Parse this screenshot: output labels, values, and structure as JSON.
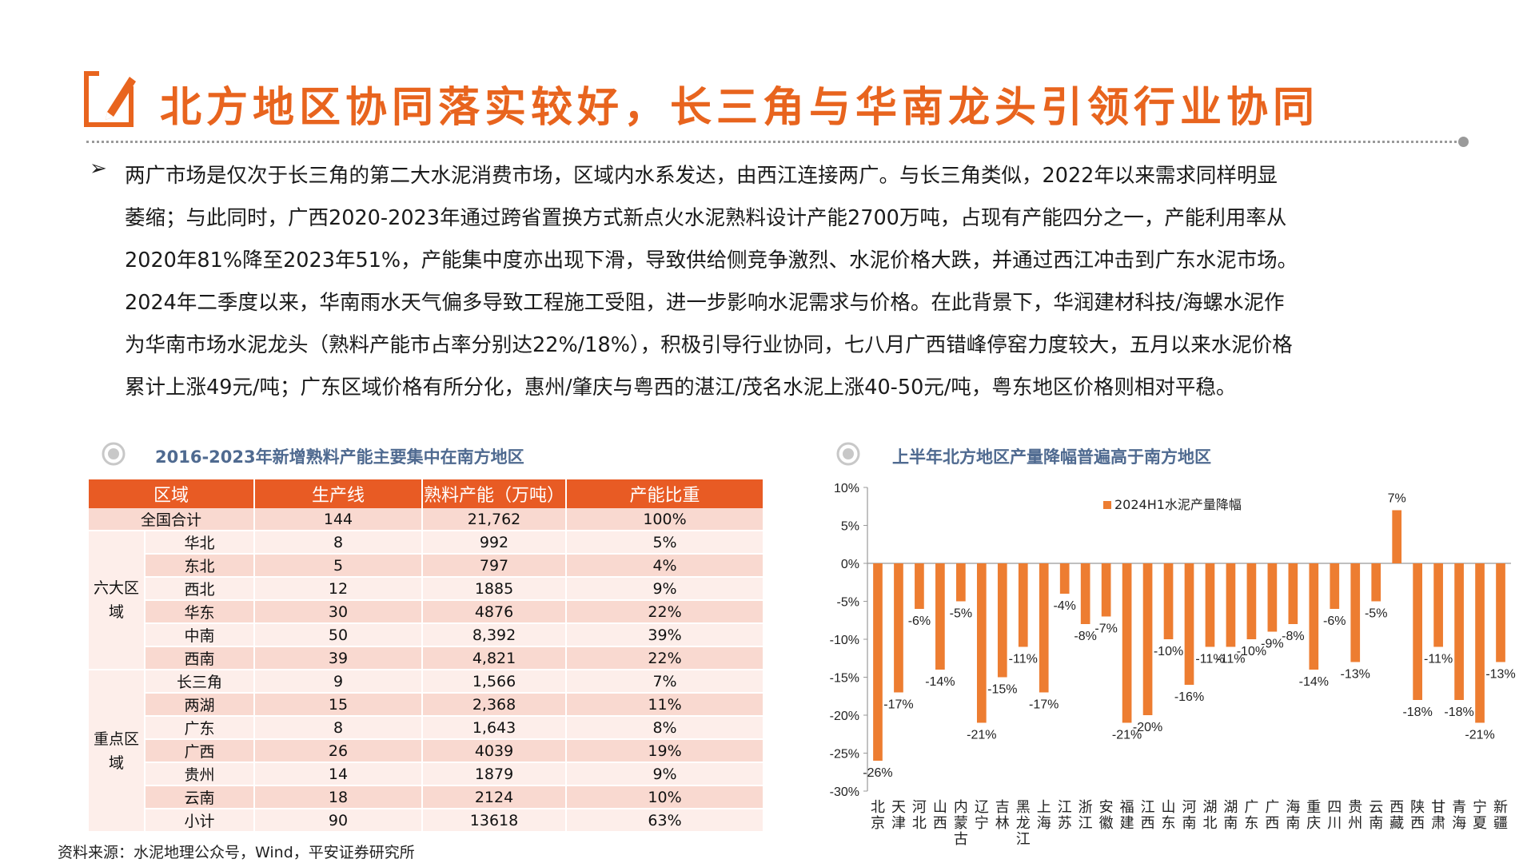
{
  "header": {
    "title": "北方地区协同落实较好，长三角与华南龙头引领行业协同"
  },
  "body_text": {
    "bullet": "➢",
    "lines": [
      "两广市场是仅次于长三角的第二大水泥消费市场，区域内水系发达，由西江连接两广。与长三角类似，2022年以来需求同样明显",
      "萎缩；与此同时，广西2020-2023年通过跨省置换方式新点火水泥熟料设计产能2700万吨，占现有产能四分之一，产能利用率从",
      "2020年81%降至2023年51%，产能集中度亦出现下滑，导致供给侧竞争激烈、水泥价格大跌，并通过西江冲击到广东水泥市场。",
      "2024年二季度以来，华南雨水天气偏多导致工程施工受阻，进一步影响水泥需求与价格。在此背景下，华润建材科技/海螺水泥作",
      "为华南市场水泥龙头（熟料产能市占率分别达22%/18%），积极引导行业协同，七八月广西错峰停窑力度较大，五月以来水泥价格",
      "累计上涨49元/吨；广东区域价格有所分化，惠州/肇庆与粤西的湛江/茂名水泥上涨40-50元/吨，粤东地区价格则相对平稳。"
    ]
  },
  "table_section": {
    "heading": "2016-2023年新增熟料产能主要集中在南方地区",
    "columns": [
      "区域",
      "生产线",
      "熟料产能（万吨）",
      "产能比重"
    ],
    "total": {
      "region": "全国合计",
      "lines": "144",
      "capacity": "21,762",
      "share": "100%"
    },
    "groups": [
      {
        "label": "六大区域",
        "rows": [
          {
            "region": "华北",
            "lines": "8",
            "capacity": "992",
            "share": "5%"
          },
          {
            "region": "东北",
            "lines": "5",
            "capacity": "797",
            "share": "4%"
          },
          {
            "region": "西北",
            "lines": "12",
            "capacity": "1885",
            "share": "9%"
          },
          {
            "region": "华东",
            "lines": "30",
            "capacity": "4876",
            "share": "22%"
          },
          {
            "region": "中南",
            "lines": "50",
            "capacity": "8,392",
            "share": "39%"
          },
          {
            "region": "西南",
            "lines": "39",
            "capacity": "4,821",
            "share": "22%"
          }
        ]
      },
      {
        "label": "重点区域",
        "rows": [
          {
            "region": "长三角",
            "lines": "9",
            "capacity": "1,566",
            "share": "7%"
          },
          {
            "region": "两湖",
            "lines": "15",
            "capacity": "2,368",
            "share": "11%"
          },
          {
            "region": "广东",
            "lines": "8",
            "capacity": "1,643",
            "share": "8%"
          },
          {
            "region": "广西",
            "lines": "26",
            "capacity": "4039",
            "share": "19%"
          },
          {
            "region": "贵州",
            "lines": "14",
            "capacity": "1879",
            "share": "9%"
          },
          {
            "region": "云南",
            "lines": "18",
            "capacity": "2124",
            "share": "10%"
          },
          {
            "region": "小计",
            "lines": "90",
            "capacity": "13618",
            "share": "63%"
          }
        ]
      }
    ]
  },
  "chart_section": {
    "heading": "上半年北方地区产量降幅普遍高于南方地区"
  },
  "chart_data": {
    "type": "bar",
    "title": "上半年北方地区产量降幅普遍高于南方地区",
    "legend": "2024H1水泥产量降幅",
    "legend_position": "top-center",
    "unit": "%",
    "ylim": [
      -30,
      10
    ],
    "yticks": [
      10,
      5,
      0,
      -5,
      -10,
      -15,
      -20,
      -25,
      -30
    ],
    "categories": [
      "北京",
      "天津",
      "河北",
      "山西",
      "内蒙古",
      "辽宁",
      "吉林",
      "黑龙江",
      "上海",
      "江苏",
      "浙江",
      "安徽",
      "福建",
      "江西",
      "山东",
      "河南",
      "湖北",
      "湖南",
      "广东",
      "广西",
      "海南",
      "重庆",
      "四川",
      "贵州",
      "云南",
      "西藏",
      "陕西",
      "甘肃",
      "青海",
      "宁夏",
      "新疆"
    ],
    "values": [
      -26,
      -17,
      -6,
      -14,
      -5,
      -21,
      -15,
      -11,
      -17,
      -4,
      -8,
      -7,
      -21,
      -20,
      -10,
      -16,
      -11,
      -11,
      -10,
      -9,
      -8,
      -14,
      -6,
      -13,
      -5,
      7,
      -18,
      -11,
      -18,
      -21,
      -13
    ],
    "bar_color": "#ED7D31"
  },
  "footer": {
    "source": "资料来源：水泥地理公众号，Wind，平安证券研究所"
  }
}
